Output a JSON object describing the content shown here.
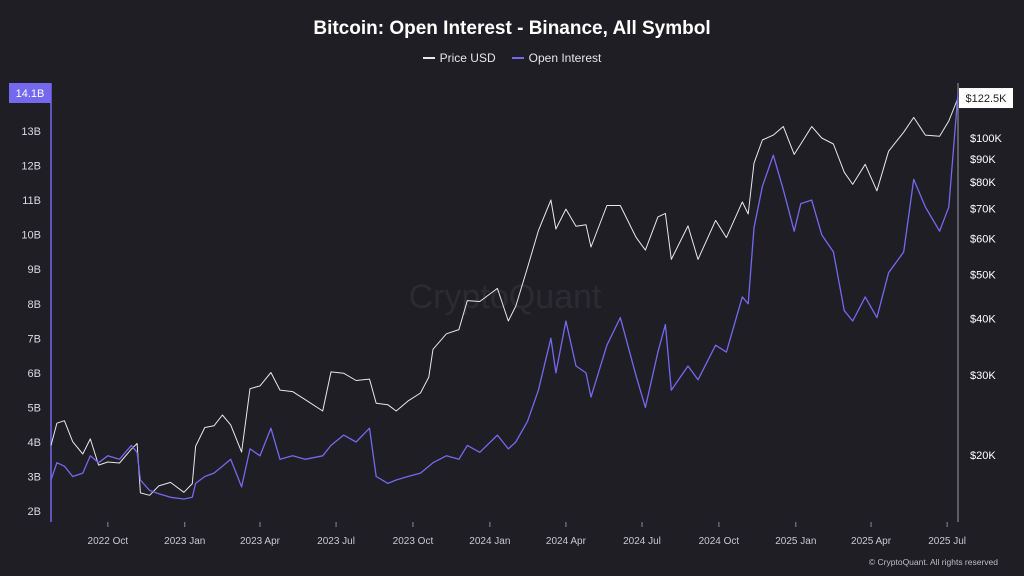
{
  "chart_data": {
    "type": "line",
    "title": "Bitcoin: Open Interest - Binance, All Symbol",
    "legend": {
      "placement": "top-center",
      "items": [
        {
          "name": "Price USD",
          "color": "#e8e8e8"
        },
        {
          "name": "Open Interest",
          "color": "#7468ee"
        }
      ]
    },
    "x_axis": {
      "ticks": [
        "2022 Oct",
        "2023 Jan",
        "2023 Apr",
        "2023 Jul",
        "2023 Oct",
        "2024 Jan",
        "2024 Apr",
        "2024 Jul",
        "2024 Oct",
        "2025 Jan",
        "2025 Apr",
        "2025 Jul"
      ],
      "range": [
        "2022-07-25",
        "2025-07-14"
      ]
    },
    "y_axis_left": {
      "label": "",
      "ticks": [
        "2B",
        "3B",
        "4B",
        "5B",
        "6B",
        "7B",
        "8B",
        "9B",
        "10B",
        "11B",
        "12B",
        "13B"
      ],
      "tick_values": [
        2,
        3,
        4,
        5,
        6,
        7,
        8,
        9,
        10,
        11,
        12,
        13
      ],
      "range": [
        1.8,
        14.1
      ],
      "units": "billions USD",
      "current_label": "14.1B",
      "current_value": 14.1,
      "color": "#7468ee"
    },
    "y_axis_right": {
      "label": "",
      "scale": "log",
      "ticks": [
        "$20K",
        "$30K",
        "$40K",
        "$50K",
        "$60K",
        "$70K",
        "$80K",
        "$90K",
        "$100K"
      ],
      "tick_values": [
        20000,
        30000,
        40000,
        50000,
        60000,
        70000,
        80000,
        90000,
        100000
      ],
      "current_label": "$122.5K",
      "current_value": 122500
    },
    "grid": false,
    "series": [
      {
        "name": "Price USD",
        "axis": "right",
        "color": "#e8e8e8",
        "points": [
          [
            "2022-07-25",
            21000
          ],
          [
            "2022-08-01",
            23500
          ],
          [
            "2022-08-10",
            23800
          ],
          [
            "2022-08-20",
            21400
          ],
          [
            "2022-09-01",
            20100
          ],
          [
            "2022-09-10",
            21700
          ],
          [
            "2022-09-20",
            19000
          ],
          [
            "2022-10-01",
            19300
          ],
          [
            "2022-10-15",
            19200
          ],
          [
            "2022-10-29",
            20600
          ],
          [
            "2022-11-05",
            21200
          ],
          [
            "2022-11-09",
            16500
          ],
          [
            "2022-11-20",
            16300
          ],
          [
            "2022-12-01",
            17100
          ],
          [
            "2022-12-15",
            17400
          ],
          [
            "2022-12-31",
            16550
          ],
          [
            "2023-01-10",
            17300
          ],
          [
            "2023-01-14",
            20900
          ],
          [
            "2023-01-25",
            23000
          ],
          [
            "2023-02-05",
            23200
          ],
          [
            "2023-02-15",
            24500
          ],
          [
            "2023-02-25",
            23300
          ],
          [
            "2023-03-10",
            20300
          ],
          [
            "2023-03-20",
            28000
          ],
          [
            "2023-04-01",
            28400
          ],
          [
            "2023-04-14",
            30400
          ],
          [
            "2023-04-25",
            27800
          ],
          [
            "2023-05-10",
            27600
          ],
          [
            "2023-05-25",
            26500
          ],
          [
            "2023-06-15",
            25000
          ],
          [
            "2023-06-25",
            30500
          ],
          [
            "2023-07-10",
            30300
          ],
          [
            "2023-07-25",
            29200
          ],
          [
            "2023-08-10",
            29400
          ],
          [
            "2023-08-18",
            26000
          ],
          [
            "2023-09-01",
            25800
          ],
          [
            "2023-09-11",
            25000
          ],
          [
            "2023-09-25",
            26300
          ],
          [
            "2023-10-10",
            27400
          ],
          [
            "2023-10-20",
            29700
          ],
          [
            "2023-10-25",
            34200
          ],
          [
            "2023-11-10",
            37000
          ],
          [
            "2023-11-25",
            37800
          ],
          [
            "2023-12-05",
            43800
          ],
          [
            "2023-12-20",
            43600
          ],
          [
            "2024-01-10",
            46600
          ],
          [
            "2024-01-23",
            39500
          ],
          [
            "2024-02-01",
            42600
          ],
          [
            "2024-02-15",
            51800
          ],
          [
            "2024-02-28",
            62500
          ],
          [
            "2024-03-14",
            73000
          ],
          [
            "2024-03-20",
            63000
          ],
          [
            "2024-04-01",
            69700
          ],
          [
            "2024-04-13",
            63900
          ],
          [
            "2024-04-25",
            64400
          ],
          [
            "2024-05-01",
            57500
          ],
          [
            "2024-05-20",
            71000
          ],
          [
            "2024-06-05",
            71000
          ],
          [
            "2024-06-24",
            60300
          ],
          [
            "2024-07-05",
            56600
          ],
          [
            "2024-07-20",
            67000
          ],
          [
            "2024-07-29",
            68200
          ],
          [
            "2024-08-05",
            54000
          ],
          [
            "2024-08-25",
            64000
          ],
          [
            "2024-09-06",
            54000
          ],
          [
            "2024-09-27",
            65800
          ],
          [
            "2024-10-10",
            60300
          ],
          [
            "2024-10-29",
            72300
          ],
          [
            "2024-11-05",
            68000
          ],
          [
            "2024-11-12",
            88000
          ],
          [
            "2024-11-22",
            99000
          ],
          [
            "2024-12-05",
            101500
          ],
          [
            "2024-12-17",
            106000
          ],
          [
            "2024-12-30",
            92000
          ],
          [
            "2025-01-07",
            97000
          ],
          [
            "2025-01-20",
            106000
          ],
          [
            "2025-02-01",
            100000
          ],
          [
            "2025-02-15",
            97000
          ],
          [
            "2025-02-28",
            84000
          ],
          [
            "2025-03-10",
            79000
          ],
          [
            "2025-03-25",
            87500
          ],
          [
            "2025-04-08",
            76500
          ],
          [
            "2025-04-22",
            93500
          ],
          [
            "2025-05-10",
            103000
          ],
          [
            "2025-05-22",
            111000
          ],
          [
            "2025-06-05",
            101500
          ],
          [
            "2025-06-22",
            100900
          ],
          [
            "2025-07-03",
            109000
          ],
          [
            "2025-07-14",
            122500
          ]
        ]
      },
      {
        "name": "Open Interest",
        "axis": "left",
        "color": "#7468ee",
        "points": [
          [
            "2022-07-25",
            2.9
          ],
          [
            "2022-08-01",
            3.4
          ],
          [
            "2022-08-10",
            3.3
          ],
          [
            "2022-08-20",
            3.0
          ],
          [
            "2022-09-01",
            3.1
          ],
          [
            "2022-09-10",
            3.6
          ],
          [
            "2022-09-20",
            3.4
          ],
          [
            "2022-10-01",
            3.6
          ],
          [
            "2022-10-15",
            3.5
          ],
          [
            "2022-10-29",
            3.9
          ],
          [
            "2022-11-05",
            3.7
          ],
          [
            "2022-11-09",
            2.9
          ],
          [
            "2022-11-20",
            2.6
          ],
          [
            "2022-12-01",
            2.5
          ],
          [
            "2022-12-15",
            2.4
          ],
          [
            "2022-12-31",
            2.35
          ],
          [
            "2023-01-10",
            2.4
          ],
          [
            "2023-01-14",
            2.8
          ],
          [
            "2023-01-25",
            3.0
          ],
          [
            "2023-02-05",
            3.1
          ],
          [
            "2023-02-15",
            3.3
          ],
          [
            "2023-02-25",
            3.5
          ],
          [
            "2023-03-10",
            2.7
          ],
          [
            "2023-03-20",
            3.8
          ],
          [
            "2023-04-01",
            3.6
          ],
          [
            "2023-04-14",
            4.4
          ],
          [
            "2023-04-25",
            3.5
          ],
          [
            "2023-05-10",
            3.6
          ],
          [
            "2023-05-25",
            3.5
          ],
          [
            "2023-06-15",
            3.6
          ],
          [
            "2023-06-25",
            3.9
          ],
          [
            "2023-07-10",
            4.2
          ],
          [
            "2023-07-25",
            4.0
          ],
          [
            "2023-08-10",
            4.4
          ],
          [
            "2023-08-18",
            3.0
          ],
          [
            "2023-09-01",
            2.8
          ],
          [
            "2023-09-11",
            2.9
          ],
          [
            "2023-09-25",
            3.0
          ],
          [
            "2023-10-10",
            3.1
          ],
          [
            "2023-10-20",
            3.3
          ],
          [
            "2023-10-25",
            3.4
          ],
          [
            "2023-11-10",
            3.6
          ],
          [
            "2023-11-25",
            3.5
          ],
          [
            "2023-12-05",
            3.9
          ],
          [
            "2023-12-20",
            3.7
          ],
          [
            "2024-01-10",
            4.2
          ],
          [
            "2024-01-23",
            3.8
          ],
          [
            "2024-02-01",
            4.0
          ],
          [
            "2024-02-15",
            4.6
          ],
          [
            "2024-02-28",
            5.5
          ],
          [
            "2024-03-14",
            7.0
          ],
          [
            "2024-03-20",
            6.0
          ],
          [
            "2024-04-01",
            7.5
          ],
          [
            "2024-04-13",
            6.2
          ],
          [
            "2024-04-25",
            6.0
          ],
          [
            "2024-05-01",
            5.3
          ],
          [
            "2024-05-20",
            6.8
          ],
          [
            "2024-06-05",
            7.6
          ],
          [
            "2024-06-24",
            5.9
          ],
          [
            "2024-07-05",
            5.0
          ],
          [
            "2024-07-20",
            6.6
          ],
          [
            "2024-07-29",
            7.4
          ],
          [
            "2024-08-05",
            5.5
          ],
          [
            "2024-08-25",
            6.2
          ],
          [
            "2024-09-06",
            5.8
          ],
          [
            "2024-09-27",
            6.8
          ],
          [
            "2024-10-10",
            6.6
          ],
          [
            "2024-10-29",
            8.2
          ],
          [
            "2024-11-05",
            8.0
          ],
          [
            "2024-11-12",
            10.2
          ],
          [
            "2024-11-22",
            11.4
          ],
          [
            "2024-12-05",
            12.3
          ],
          [
            "2024-12-17",
            11.3
          ],
          [
            "2024-12-30",
            10.1
          ],
          [
            "2025-01-07",
            10.9
          ],
          [
            "2025-01-20",
            11.0
          ],
          [
            "2025-02-01",
            10.0
          ],
          [
            "2025-02-15",
            9.5
          ],
          [
            "2025-02-28",
            7.8
          ],
          [
            "2025-03-10",
            7.5
          ],
          [
            "2025-03-25",
            8.2
          ],
          [
            "2025-04-08",
            7.6
          ],
          [
            "2025-04-22",
            8.9
          ],
          [
            "2025-05-10",
            9.5
          ],
          [
            "2025-05-22",
            11.6
          ],
          [
            "2025-06-05",
            10.8
          ],
          [
            "2025-06-22",
            10.1
          ],
          [
            "2025-07-03",
            10.8
          ],
          [
            "2025-07-14",
            14.1
          ]
        ]
      }
    ],
    "watermark": "CryptoQuant",
    "footer": "© CryptoQuant. All rights reserved"
  }
}
